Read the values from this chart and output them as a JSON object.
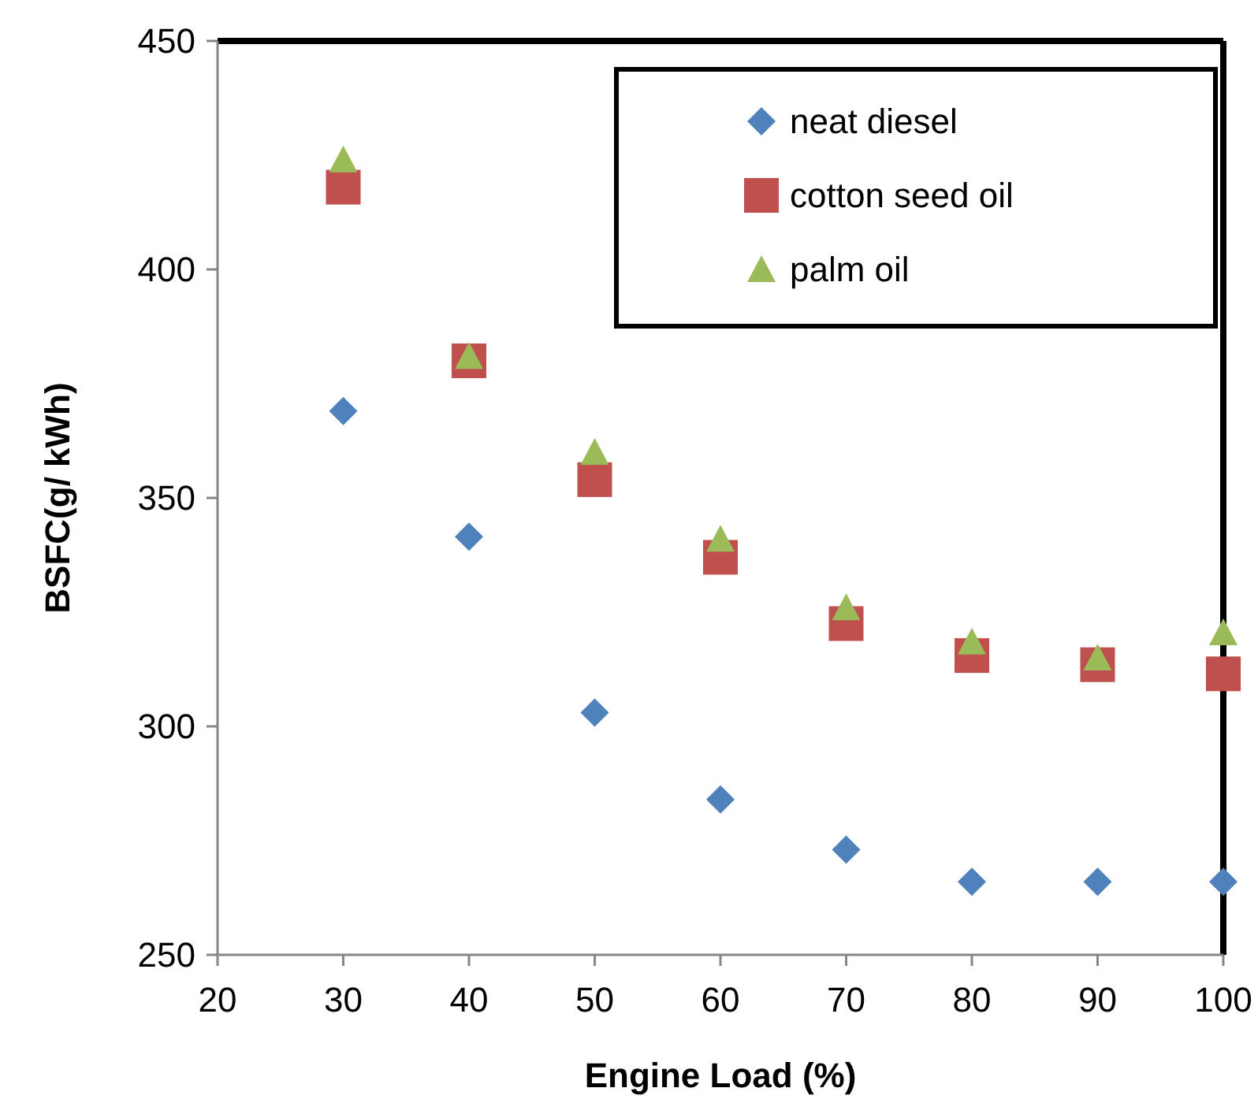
{
  "chart_data": {
    "type": "scatter",
    "xlabel": "Engine Load (%)",
    "ylabel": "BSFC(g/ kWh)",
    "x": [
      30,
      40,
      50,
      60,
      70,
      80,
      90,
      100
    ],
    "series": [
      {
        "name": "neat diesel",
        "color": "#4f81bd",
        "marker": "diamond",
        "values": [
          369,
          341.5,
          303,
          284,
          273,
          266,
          266,
          266
        ]
      },
      {
        "name": "cotton seed oil",
        "color": "#c0504d",
        "marker": "square",
        "values": [
          418,
          380,
          354,
          337,
          322.5,
          315.5,
          313.5,
          311.5
        ]
      },
      {
        "name": "palm oil",
        "color": "#9bbb59",
        "marker": "triangle",
        "values": [
          424,
          381,
          360,
          341,
          326,
          318.5,
          315,
          320.5
        ]
      }
    ],
    "xlim": [
      20,
      100
    ],
    "xticks": [
      20,
      30,
      40,
      50,
      60,
      70,
      80,
      90,
      100
    ],
    "ylim": [
      250,
      450
    ],
    "yticks": [
      250,
      300,
      350,
      400,
      450
    ],
    "grid": false,
    "legend": "top right"
  }
}
